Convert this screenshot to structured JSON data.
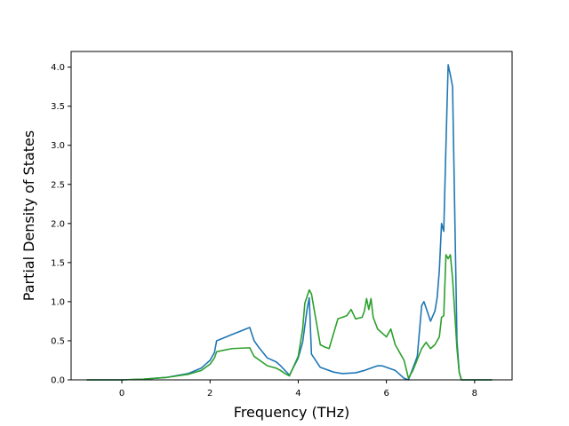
{
  "chart_data": {
    "type": "line",
    "title": "",
    "xlabel": "Frequency (THz)",
    "ylabel": "Partial Density of States",
    "xlim": [
      -1.15,
      8.85
    ],
    "ylim": [
      0.0,
      4.2
    ],
    "xticks": [
      0,
      2,
      4,
      6,
      8
    ],
    "xtick_labels": [
      "0",
      "2",
      "4",
      "6",
      "8"
    ],
    "yticks": [
      0.0,
      0.5,
      1.0,
      1.5,
      2.0,
      2.5,
      3.0,
      3.5,
      4.0
    ],
    "ytick_labels": [
      "0.0",
      "0.5",
      "1.0",
      "1.5",
      "2.0",
      "2.5",
      "3.0",
      "3.5",
      "4.0"
    ],
    "grid": false,
    "legend": "none",
    "series": [
      {
        "color": "#1f77b4",
        "x": [
          -0.8,
          0.0,
          0.5,
          1.0,
          1.5,
          1.8,
          2.0,
          2.1,
          2.15,
          2.5,
          2.9,
          3.0,
          3.1,
          3.3,
          3.5,
          3.6,
          3.7,
          3.8,
          4.0,
          4.1,
          4.2,
          4.25,
          4.3,
          4.5,
          4.8,
          5.0,
          5.3,
          5.5,
          5.8,
          5.9,
          6.2,
          6.3,
          6.4,
          6.5,
          6.6,
          6.7,
          6.8,
          6.85,
          6.9,
          7.0,
          7.1,
          7.15,
          7.2,
          7.25,
          7.3,
          7.35,
          7.4,
          7.45,
          7.5,
          7.6,
          7.65,
          7.7,
          8.4
        ],
        "y": [
          0.0,
          0.0,
          0.01,
          0.03,
          0.08,
          0.15,
          0.25,
          0.35,
          0.5,
          0.58,
          0.67,
          0.5,
          0.42,
          0.28,
          0.23,
          0.18,
          0.12,
          0.06,
          0.28,
          0.48,
          0.9,
          1.05,
          0.33,
          0.16,
          0.1,
          0.08,
          0.09,
          0.12,
          0.18,
          0.18,
          0.12,
          0.07,
          0.02,
          0.0,
          0.15,
          0.3,
          0.95,
          1.0,
          0.92,
          0.75,
          0.88,
          1.05,
          1.4,
          2.0,
          1.9,
          3.0,
          4.03,
          3.9,
          3.75,
          0.5,
          0.1,
          0.0,
          0.0
        ]
      },
      {
        "color": "#2ca02c",
        "x": [
          -0.8,
          0.0,
          0.5,
          1.0,
          1.5,
          1.8,
          2.0,
          2.1,
          2.15,
          2.5,
          2.9,
          3.0,
          3.3,
          3.5,
          3.6,
          3.7,
          3.8,
          4.0,
          4.1,
          4.15,
          4.25,
          4.3,
          4.5,
          4.6,
          4.7,
          4.9,
          5.0,
          5.1,
          5.2,
          5.3,
          5.45,
          5.5,
          5.55,
          5.6,
          5.65,
          5.7,
          5.8,
          6.0,
          6.1,
          6.2,
          6.4,
          6.5,
          6.6,
          6.8,
          6.9,
          7.0,
          7.1,
          7.2,
          7.25,
          7.3,
          7.35,
          7.4,
          7.45,
          7.5,
          7.6,
          7.65,
          7.7,
          8.4
        ],
        "y": [
          0.0,
          0.0,
          0.01,
          0.03,
          0.07,
          0.12,
          0.2,
          0.28,
          0.36,
          0.4,
          0.41,
          0.3,
          0.18,
          0.15,
          0.12,
          0.08,
          0.05,
          0.3,
          0.65,
          0.98,
          1.15,
          1.1,
          0.45,
          0.42,
          0.4,
          0.78,
          0.8,
          0.82,
          0.9,
          0.78,
          0.8,
          0.88,
          1.04,
          0.9,
          1.04,
          0.8,
          0.65,
          0.55,
          0.65,
          0.45,
          0.25,
          0.02,
          0.12,
          0.4,
          0.48,
          0.4,
          0.45,
          0.55,
          0.8,
          0.82,
          1.6,
          1.55,
          1.6,
          1.3,
          0.4,
          0.1,
          0.0,
          0.0
        ]
      }
    ]
  }
}
